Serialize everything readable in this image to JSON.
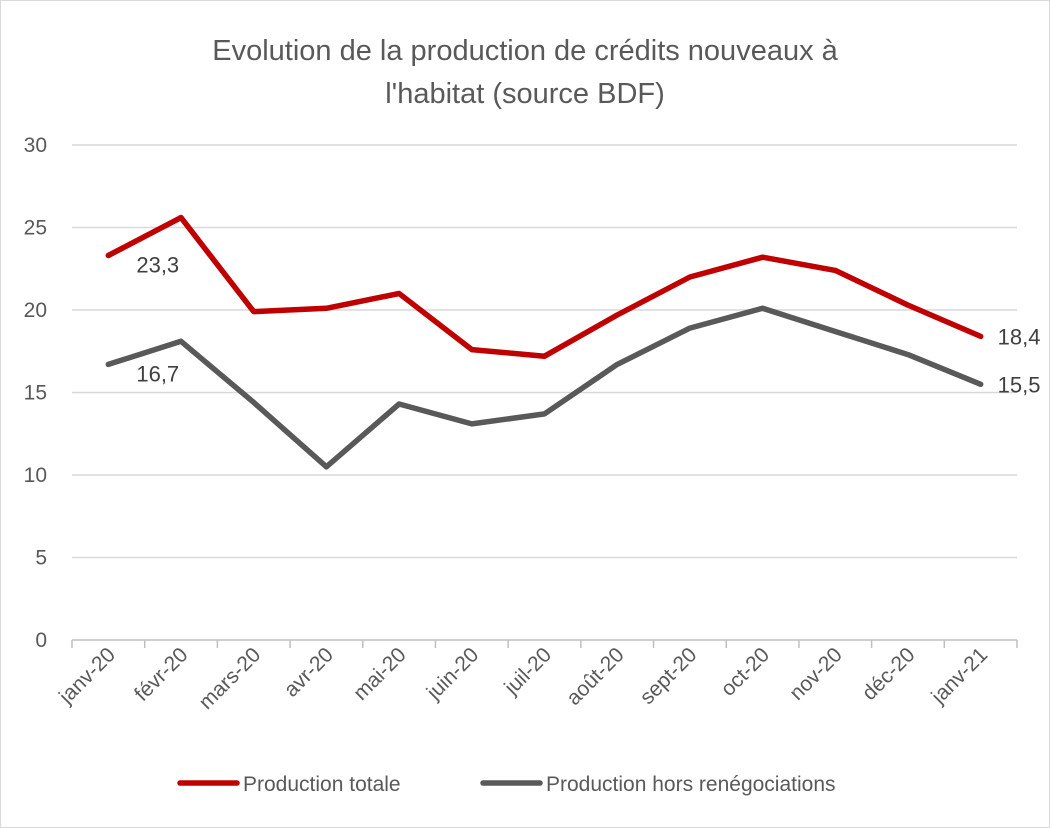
{
  "chart_data": {
    "type": "line",
    "title_lines": [
      "Evolution de la production de crédits nouveaux à",
      "l'habitat (source BDF)"
    ],
    "categories": [
      "janv-20",
      "févr-20",
      "mars-20",
      "avr-20",
      "mai-20",
      "juin-20",
      "juil-20",
      "août-20",
      "sept-20",
      "oct-20",
      "nov-20",
      "déc-20",
      "janv-21"
    ],
    "series": [
      {
        "name": "Production totale",
        "color": "#c00000",
        "values": [
          23.3,
          25.6,
          19.9,
          20.1,
          21.0,
          17.6,
          17.2,
          19.7,
          22.0,
          23.2,
          22.4,
          20.3,
          18.4
        ],
        "labels": [
          {
            "index": 0,
            "text": "23,3"
          },
          {
            "index": 12,
            "text": "18,4"
          }
        ]
      },
      {
        "name": "Production hors renégociations",
        "color": "#595959",
        "values": [
          16.7,
          18.1,
          14.4,
          10.5,
          14.3,
          13.1,
          13.7,
          16.7,
          18.9,
          20.1,
          18.7,
          17.3,
          15.5
        ],
        "labels": [
          {
            "index": 0,
            "text": "16,7"
          },
          {
            "index": 12,
            "text": "15,5"
          }
        ]
      }
    ],
    "yticks": [
      "0",
      "5",
      "10",
      "15",
      "20",
      "25",
      "30"
    ],
    "ylim": [
      0,
      30
    ],
    "grid": true,
    "legend_position": "bottom"
  }
}
